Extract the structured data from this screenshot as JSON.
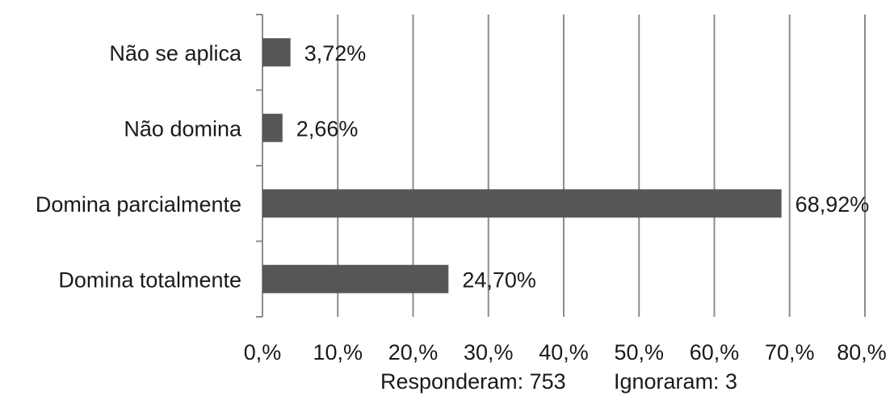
{
  "chart_data": {
    "type": "bar",
    "orientation": "horizontal",
    "categories": [
      "Não se aplica",
      "Não domina",
      "Domina parcialmente",
      "Domina totalmente"
    ],
    "values": [
      3.72,
      2.66,
      68.92,
      24.7
    ],
    "value_labels": [
      "3,72%",
      "2,66%",
      "68,92%",
      "24,70%"
    ],
    "xlim": [
      0,
      80
    ],
    "x_ticks": [
      0,
      10,
      20,
      30,
      40,
      50,
      60,
      70,
      80
    ],
    "x_tick_labels": [
      "0,%",
      "10,%",
      "20,%",
      "30,%",
      "40,%",
      "50,%",
      "60,%",
      "70,%",
      "80,%"
    ],
    "grid": "vertical",
    "legend": "none"
  },
  "footer": {
    "responderam": "Responderam: 753",
    "ignoraram": "Ignoraram: 3"
  },
  "colors": {
    "bar": "#555757",
    "grid": "#8c8c8c",
    "axis": "#8c8c8c"
  }
}
